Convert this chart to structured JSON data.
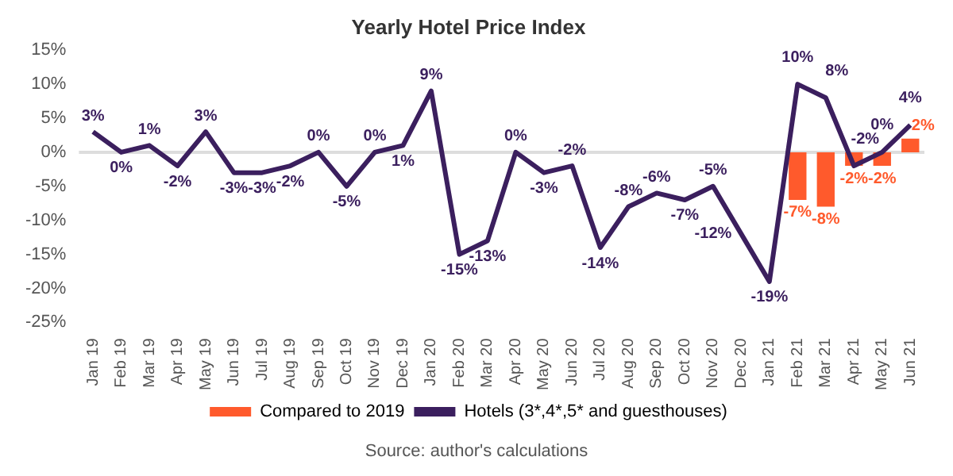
{
  "chart_data": {
    "type": "line",
    "title": "Yearly Hotel Price Index",
    "categories": [
      "Jan 19",
      "Feb 19",
      "Mar 19",
      "Apr 19",
      "May 19",
      "Jun 19",
      "Jul 19",
      "Aug 19",
      "Sep 19",
      "Oct 19",
      "Nov 19",
      "Dec 19",
      "Jan 20",
      "Feb 20",
      "Mar 20",
      "Apr 20",
      "May 20",
      "Jun 20",
      "Jul 20",
      "Aug 20",
      "Sep 20",
      "Oct 20",
      "Nov 20",
      "Dec 20",
      "Jan 21",
      "Feb 21",
      "Mar 21",
      "Apr 21",
      "May 21",
      "Jun 21"
    ],
    "series": [
      {
        "name": "Compared to 2019",
        "type": "bar",
        "color": "#ff5a2c",
        "values": [
          null,
          null,
          null,
          null,
          null,
          null,
          null,
          null,
          null,
          null,
          null,
          null,
          null,
          null,
          null,
          null,
          null,
          null,
          null,
          null,
          null,
          null,
          null,
          null,
          null,
          -7,
          -8,
          -2,
          -2,
          2
        ],
        "value_labels": [
          null,
          null,
          null,
          null,
          null,
          null,
          null,
          null,
          null,
          null,
          null,
          null,
          null,
          null,
          null,
          null,
          null,
          null,
          null,
          null,
          null,
          null,
          null,
          null,
          null,
          "-7%",
          "-8%",
          "-2%",
          "-2%",
          "2%"
        ]
      },
      {
        "name": "Hotels (3*,4*,5* and guesthouses)",
        "color": "#3b1f5e",
        "values": [
          3,
          0,
          1,
          -2,
          3,
          -3,
          -3,
          -2,
          0,
          -5,
          0,
          1,
          9,
          -15,
          -13,
          0,
          -3,
          -2,
          -14,
          -8,
          -6,
          -7,
          -5,
          -12,
          -19,
          10,
          8,
          -2,
          0,
          4
        ],
        "value_labels": [
          "3%",
          "0%",
          "1%",
          "-2%",
          "3%",
          "-3%",
          "-3%",
          "-2%",
          "0%",
          "-5%",
          "0%",
          "1%",
          "9%",
          "-15%",
          "-13%",
          "0%",
          "-3%",
          "-2%",
          "-14%",
          "-8%",
          "-6%",
          "-7%",
          "-5%",
          "-12%",
          "-19%",
          "10%",
          "8%",
          "-2%",
          "0%",
          "4%"
        ]
      }
    ],
    "ylim": [
      -25,
      15
    ],
    "yticks": [
      {
        "value": -25,
        "label": "-25%"
      },
      {
        "value": -20,
        "label": "-20%"
      },
      {
        "value": -15,
        "label": "-15%"
      },
      {
        "value": -10,
        "label": "-10%"
      },
      {
        "value": -5,
        "label": "-5%"
      },
      {
        "value": 0,
        "label": "0%"
      },
      {
        "value": 5,
        "label": "5%"
      },
      {
        "value": 10,
        "label": "10%"
      },
      {
        "value": 15,
        "label": "15%"
      }
    ],
    "ref_lines": [
      {
        "axis": "y",
        "value": 0,
        "color": "#dddddd"
      }
    ],
    "grid": false,
    "legend": "bottom",
    "marker": "none",
    "line_style": "solid",
    "annotations": [
      "Source: author's calculations"
    ]
  }
}
